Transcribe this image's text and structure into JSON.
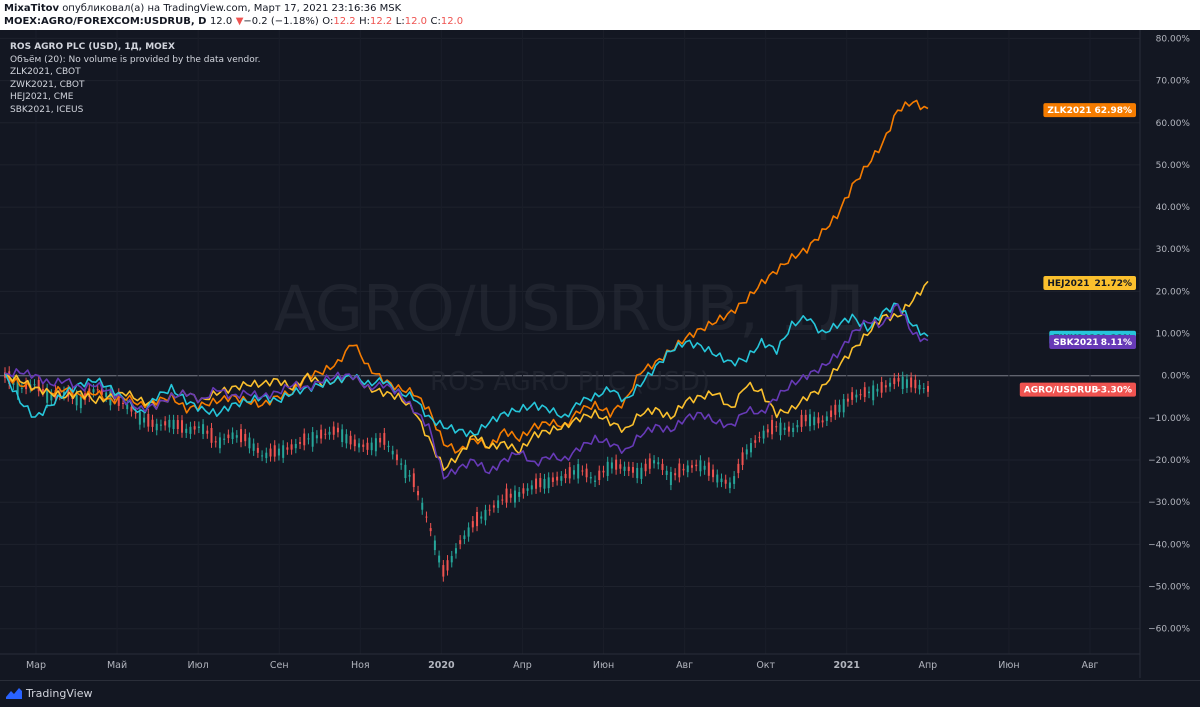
{
  "header": {
    "author": "MixaTitov",
    "published_text": "опубликовал(а) на TradingView.com, Март 17, 2021 23:16:36 MSK",
    "symbol": "MOEX:AGRO/FOREXCOM:USDRUB, D",
    "price": "12.0",
    "change_arrow": "▼",
    "change": "−0.2 (−1.18%)",
    "o_label": "O:",
    "o_value": "12.2",
    "h_label": "H:",
    "h_value": "12.2",
    "l_label": "L:",
    "l_value": "12.0",
    "c_label": "C:",
    "c_value": "12.0"
  },
  "legend": {
    "title": "ROS AGRO PLC (USD), 1Д, MOEX",
    "volume": "Объём (20): No volume is provided by the data vendor.",
    "items": [
      "ZLK2021, CBOT",
      "ZWK2021, CBOT",
      "HEJ2021, CME",
      "SBK2021, ICEUS"
    ]
  },
  "watermark": {
    "main": "AGRO/USDRUB, 1Д",
    "sub": "ROS AGRO PLC (USD)"
  },
  "footer": {
    "brand": "TradingView"
  },
  "colors": {
    "background": "#131722",
    "ZLK2021": "#f57c00",
    "HEJ2021": "#fbc02d",
    "ZWK2021": "#26c6da",
    "SBK2021": "#673ab7",
    "AGRO_up": "#26a69a",
    "AGRO_down": "#ef5350"
  },
  "chart_data": {
    "type": "line",
    "x_axis_labels": [
      "Мар",
      "Май",
      "Июл",
      "Сен",
      "Ноя",
      "2020",
      "Апр",
      "Июн",
      "Авг",
      "Окт",
      "2021",
      "Апр",
      "Июн",
      "Авг"
    ],
    "y_ticks": [
      "80.00%",
      "70.00%",
      "60.00%",
      "50.00%",
      "40.00%",
      "30.00%",
      "20.00%",
      "10.00%",
      "0.00%",
      "−10.00%",
      "−20.00%",
      "−30.00%",
      "−40.00%",
      "−50.00%",
      "−60.00%"
    ],
    "ylim": [
      -66,
      82
    ],
    "y_unit": "%",
    "zero_line": 0,
    "series": [
      {
        "name": "ZLK2021",
        "last_label": "62.98%",
        "values": [
          0,
          -2,
          -3,
          -4,
          -3,
          -5,
          -4,
          -6,
          -5,
          -7,
          -6,
          -5,
          -8,
          -7,
          -6,
          -5,
          -6,
          -7,
          -5,
          -4,
          0,
          1,
          3,
          8,
          2,
          -1,
          -3,
          -4,
          -8,
          -16,
          -18,
          -15,
          -17,
          -13,
          -15,
          -12,
          -11,
          -12,
          -8,
          -7,
          -9,
          -6,
          1,
          3,
          6,
          9,
          11,
          13,
          15,
          18,
          22,
          25,
          28,
          30,
          34,
          38,
          45,
          50,
          55,
          63,
          65,
          63
        ]
      },
      {
        "name": "HEJ2021",
        "last_label": "21.72%",
        "values": [
          0,
          -1,
          -3,
          -4,
          -5,
          -4,
          -6,
          -5,
          -4,
          -6,
          -7,
          -5,
          -4,
          -6,
          -4,
          -3,
          -2,
          -2,
          -1,
          -3,
          0,
          -2,
          -1,
          0,
          -3,
          -4,
          -5,
          -8,
          -15,
          -22,
          -19,
          -14,
          -17,
          -16,
          -18,
          -14,
          -13,
          -12,
          -10,
          -9,
          -11,
          -13,
          -9,
          -8,
          -10,
          -6,
          -5,
          -4,
          -8,
          -2,
          -4,
          -9,
          -8,
          -5,
          -3,
          2,
          6,
          10,
          14,
          14,
          18,
          22
        ]
      },
      {
        "name": "ZWK2021",
        "last_label": "9.32%",
        "values": [
          0,
          -6,
          -10,
          -7,
          -4,
          -2,
          -1,
          -3,
          -6,
          -9,
          -5,
          -3,
          -6,
          -8,
          -9,
          -7,
          -6,
          -5,
          -6,
          -4,
          -3,
          -2,
          -1,
          0,
          -2,
          -1,
          -4,
          -5,
          -10,
          -12,
          -13,
          -14,
          -11,
          -9,
          -8,
          -7,
          -8,
          -10,
          -6,
          -5,
          -3,
          -6,
          -2,
          2,
          6,
          8,
          7,
          5,
          3,
          4,
          8,
          6,
          12,
          14,
          10,
          12,
          14,
          11,
          15,
          17,
          12,
          9
        ]
      },
      {
        "name": "SBK2021",
        "last_label": "8.11%",
        "values": [
          0,
          1,
          0,
          -2,
          -1,
          -3,
          -2,
          -4,
          -6,
          -8,
          -7,
          -5,
          -4,
          -6,
          -3,
          -5,
          -4,
          -5,
          -4,
          -2,
          -3,
          -1,
          0,
          0,
          -3,
          -2,
          -4,
          -8,
          -12,
          -24,
          -22,
          -20,
          -23,
          -20,
          -18,
          -21,
          -19,
          -20,
          -17,
          -15,
          -16,
          -18,
          -14,
          -12,
          -13,
          -10,
          -9,
          -11,
          -12,
          -8,
          -9,
          -5,
          -2,
          0,
          2,
          5,
          10,
          13,
          12,
          17,
          10,
          8
        ]
      },
      {
        "name": "AGRO/USDRUB",
        "last_label": "-3.30%",
        "values": [
          0,
          -3,
          -2,
          -5,
          -4,
          -6,
          -3,
          -5,
          -7,
          -10,
          -12,
          -11,
          -13,
          -12,
          -16,
          -14,
          -15,
          -19,
          -18,
          -17,
          -15,
          -14,
          -13,
          -16,
          -17,
          -15,
          -20,
          -25,
          -35,
          -47,
          -40,
          -35,
          -32,
          -29,
          -28,
          -26,
          -25,
          -24,
          -22,
          -25,
          -21,
          -22,
          -23,
          -20,
          -24,
          -22,
          -21,
          -24,
          -26,
          -18,
          -14,
          -12,
          -13,
          -10,
          -11,
          -8,
          -5,
          -4,
          -3,
          -1,
          -2,
          -3.3
        ]
      }
    ]
  }
}
